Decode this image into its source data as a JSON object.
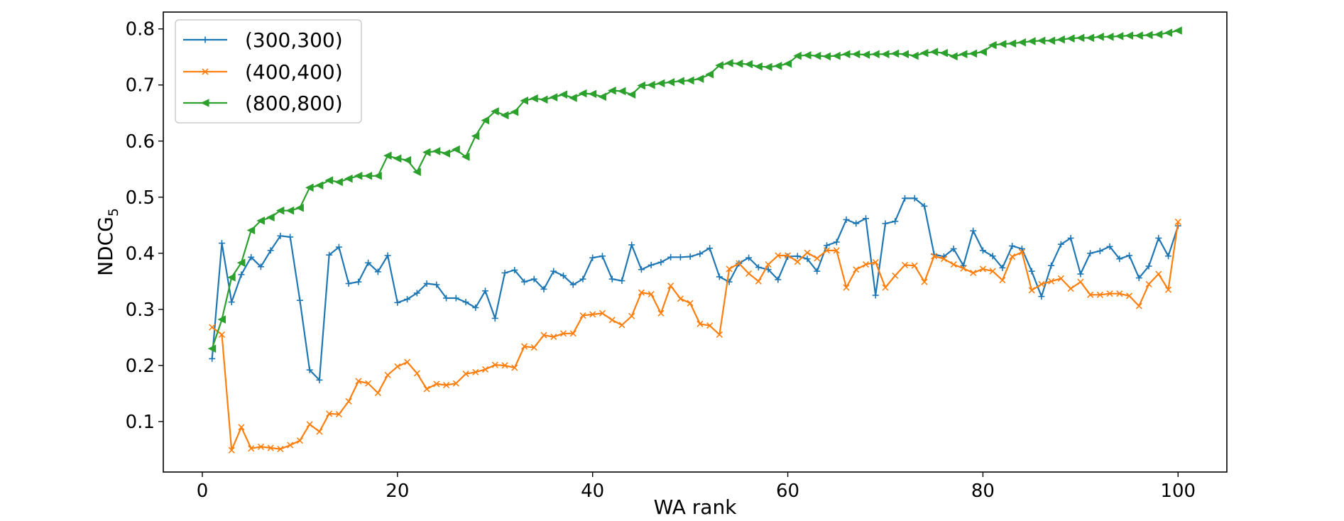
{
  "chart_data": {
    "type": "line",
    "title": "",
    "xlabel": "WA rank",
    "ylabel": "NDCG",
    "ylabel_subscript": "5",
    "xlim": [
      -4,
      105
    ],
    "ylim": [
      0.01,
      0.83
    ],
    "xticks": [
      0,
      20,
      40,
      60,
      80,
      100
    ],
    "xtick_labels": [
      "0",
      "20",
      "40",
      "60",
      "80",
      "100"
    ],
    "yticks": [
      0.1,
      0.2,
      0.3,
      0.4,
      0.5,
      0.6,
      0.7,
      0.8
    ],
    "ytick_labels": [
      "0.1",
      "0.2",
      "0.3",
      "0.4",
      "0.5",
      "0.6",
      "0.7",
      "0.8"
    ],
    "grid": false,
    "legend_position": "top-left",
    "x": [
      1,
      2,
      3,
      4,
      5,
      6,
      7,
      8,
      9,
      10,
      11,
      12,
      13,
      14,
      15,
      16,
      17,
      18,
      19,
      20,
      21,
      22,
      23,
      24,
      25,
      26,
      27,
      28,
      29,
      30,
      31,
      32,
      33,
      34,
      35,
      36,
      37,
      38,
      39,
      40,
      41,
      42,
      43,
      44,
      45,
      46,
      47,
      48,
      49,
      50,
      51,
      52,
      53,
      54,
      55,
      56,
      57,
      58,
      59,
      60,
      61,
      62,
      63,
      64,
      65,
      66,
      67,
      68,
      69,
      70,
      71,
      72,
      73,
      74,
      75,
      76,
      77,
      78,
      79,
      80,
      81,
      82,
      83,
      84,
      85,
      86,
      87,
      88,
      89,
      90,
      91,
      92,
      93,
      94,
      95,
      96,
      97,
      98,
      99,
      100
    ],
    "series": [
      {
        "name": "(300,300)",
        "color": "#1f77b4",
        "marker": "plus",
        "values": [
          0.212,
          0.418,
          0.313,
          0.362,
          0.393,
          0.376,
          0.405,
          0.431,
          0.429,
          0.316,
          0.192,
          0.174,
          0.397,
          0.411,
          0.346,
          0.349,
          0.383,
          0.367,
          0.396,
          0.312,
          0.318,
          0.329,
          0.346,
          0.344,
          0.32,
          0.32,
          0.313,
          0.303,
          0.333,
          0.284,
          0.365,
          0.37,
          0.349,
          0.354,
          0.336,
          0.368,
          0.36,
          0.344,
          0.354,
          0.392,
          0.395,
          0.354,
          0.351,
          0.415,
          0.371,
          0.379,
          0.384,
          0.393,
          0.393,
          0.394,
          0.399,
          0.409,
          0.358,
          0.349,
          0.382,
          0.392,
          0.375,
          0.371,
          0.353,
          0.394,
          0.395,
          0.39,
          0.368,
          0.414,
          0.42,
          0.46,
          0.453,
          0.462,
          0.325,
          0.453,
          0.457,
          0.498,
          0.498,
          0.484,
          0.398,
          0.394,
          0.408,
          0.378,
          0.44,
          0.405,
          0.395,
          0.374,
          0.413,
          0.408,
          0.368,
          0.323,
          0.378,
          0.416,
          0.427,
          0.363,
          0.4,
          0.404,
          0.412,
          0.39,
          0.396,
          0.356,
          0.377,
          0.427,
          0.395,
          0.449
        ]
      },
      {
        "name": "(400,400)",
        "color": "#ff7f0e",
        "marker": "x",
        "values": [
          0.268,
          0.255,
          0.049,
          0.09,
          0.052,
          0.055,
          0.053,
          0.051,
          0.058,
          0.066,
          0.095,
          0.082,
          0.114,
          0.113,
          0.136,
          0.172,
          0.168,
          0.151,
          0.183,
          0.198,
          0.206,
          0.186,
          0.158,
          0.167,
          0.165,
          0.168,
          0.185,
          0.188,
          0.193,
          0.201,
          0.2,
          0.196,
          0.234,
          0.232,
          0.254,
          0.251,
          0.257,
          0.257,
          0.289,
          0.291,
          0.293,
          0.281,
          0.272,
          0.288,
          0.33,
          0.327,
          0.293,
          0.342,
          0.319,
          0.311,
          0.274,
          0.271,
          0.255,
          0.372,
          0.382,
          0.364,
          0.35,
          0.38,
          0.396,
          0.396,
          0.385,
          0.401,
          0.391,
          0.405,
          0.405,
          0.339,
          0.371,
          0.38,
          0.384,
          0.339,
          0.36,
          0.379,
          0.378,
          0.349,
          0.395,
          0.39,
          0.38,
          0.373,
          0.365,
          0.372,
          0.368,
          0.352,
          0.394,
          0.402,
          0.334,
          0.345,
          0.35,
          0.355,
          0.337,
          0.349,
          0.326,
          0.326,
          0.328,
          0.328,
          0.324,
          0.306,
          0.345,
          0.363,
          0.335,
          0.456
        ]
      },
      {
        "name": "(800,800)",
        "color": "#2ca02c",
        "marker": "triangle-left",
        "values": [
          0.23,
          0.282,
          0.357,
          0.383,
          0.441,
          0.458,
          0.464,
          0.476,
          0.476,
          0.481,
          0.517,
          0.521,
          0.53,
          0.527,
          0.533,
          0.538,
          0.538,
          0.538,
          0.574,
          0.569,
          0.566,
          0.545,
          0.58,
          0.582,
          0.578,
          0.585,
          0.572,
          0.609,
          0.637,
          0.653,
          0.646,
          0.652,
          0.672,
          0.676,
          0.674,
          0.678,
          0.683,
          0.677,
          0.685,
          0.684,
          0.679,
          0.69,
          0.689,
          0.683,
          0.699,
          0.7,
          0.703,
          0.705,
          0.707,
          0.708,
          0.711,
          0.719,
          0.735,
          0.739,
          0.738,
          0.737,
          0.733,
          0.732,
          0.734,
          0.738,
          0.752,
          0.753,
          0.752,
          0.751,
          0.752,
          0.755,
          0.755,
          0.754,
          0.755,
          0.755,
          0.756,
          0.755,
          0.752,
          0.757,
          0.759,
          0.757,
          0.751,
          0.755,
          0.756,
          0.759,
          0.771,
          0.773,
          0.774,
          0.776,
          0.778,
          0.779,
          0.779,
          0.781,
          0.783,
          0.784,
          0.784,
          0.786,
          0.786,
          0.787,
          0.788,
          0.788,
          0.789,
          0.79,
          0.793,
          0.797
        ]
      }
    ]
  }
}
